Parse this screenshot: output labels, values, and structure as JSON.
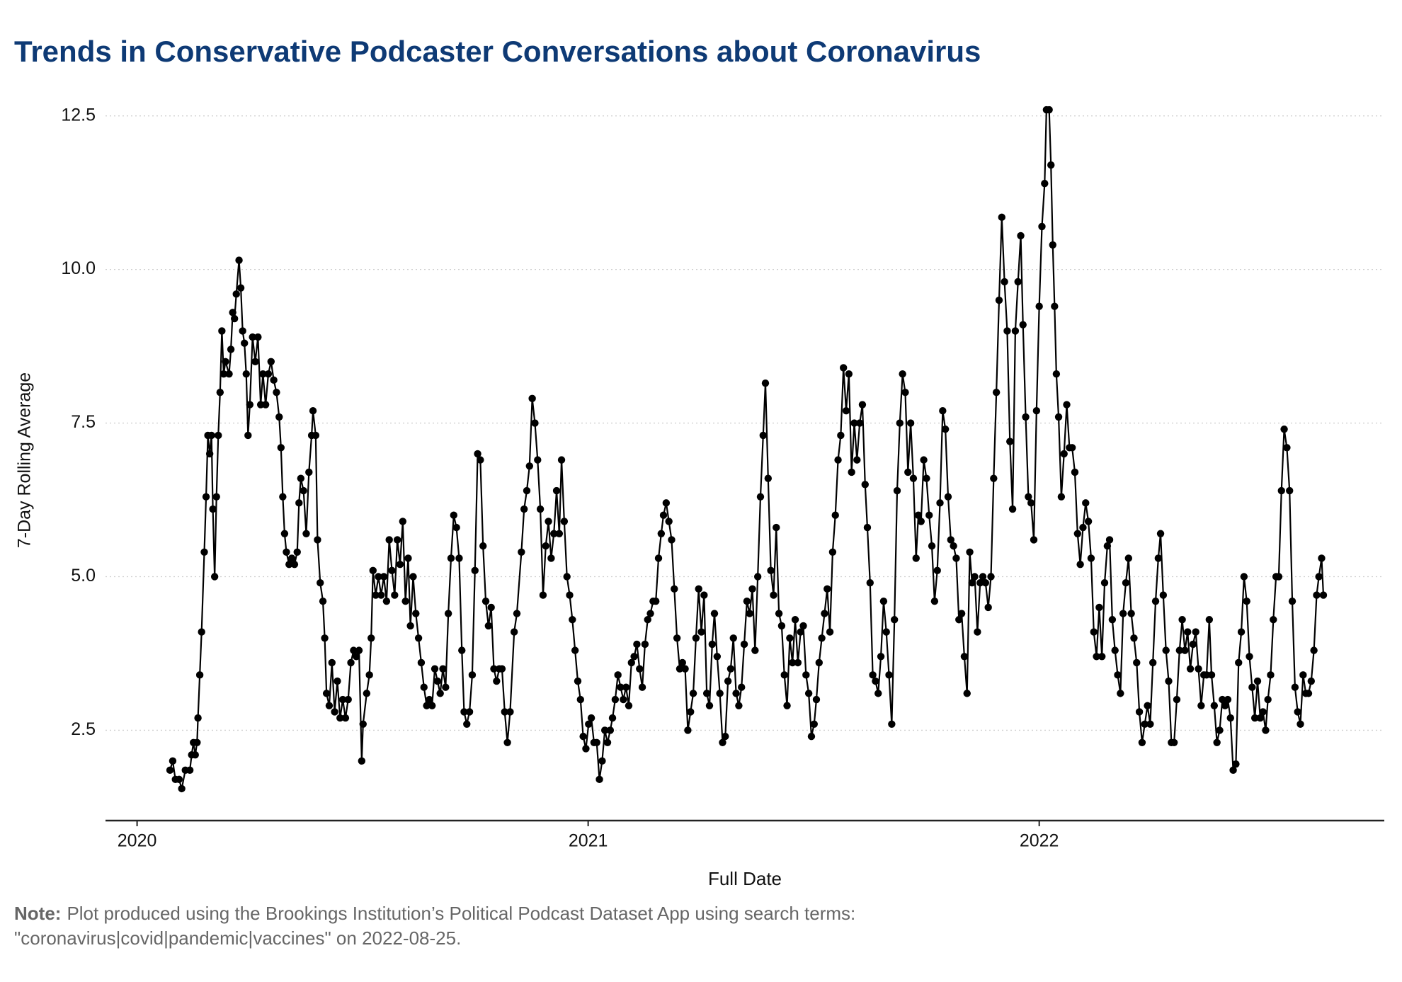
{
  "chart_data": {
    "type": "line",
    "title": "Trends in Conservative Podcaster Conversations about Coronavirus",
    "x_label": "Full Date",
    "y_label": "7-Day Rolling Average",
    "note_label": "Note:",
    "note": [
      "Plot produced using the Brookings Institution’s Political Podcast Dataset App using search terms:",
      "\"coronavirus|covid|pandemic|vaccines\"  on 2022-08-25."
    ],
    "color": "#000000",
    "grid": true,
    "xlim": [
      2019.93,
      2022.765
    ],
    "xticks": [
      2020,
      2021,
      2022
    ],
    "ylim": [
      1.03,
      12.75
    ],
    "yticks": [
      {
        "value": 2.5,
        "label": "2.5"
      },
      {
        "value": 5,
        "label": "5.0"
      },
      {
        "value": 7.5,
        "label": "7.5"
      },
      {
        "value": 10,
        "label": "10.0"
      },
      {
        "value": 12.5,
        "label": "12.5"
      }
    ],
    "x": [
      2020.073,
      2020.079,
      2020.085,
      2020.093,
      2020.099,
      2020.107,
      2020.117,
      2020.121,
      2020.125,
      2020.129,
      2020.133,
      2020.135,
      2020.139,
      2020.143,
      2020.149,
      2020.153,
      2020.157,
      2020.161,
      2020.165,
      2020.168,
      2020.172,
      2020.176,
      2020.18,
      2020.184,
      2020.188,
      2020.192,
      2020.196,
      2020.204,
      2020.208,
      2020.212,
      2020.216,
      2020.22,
      2020.226,
      2020.23,
      2020.234,
      2020.238,
      2020.242,
      2020.246,
      2020.25,
      2020.256,
      2020.262,
      2020.268,
      2020.274,
      2020.279,
      2020.285,
      2020.291,
      2020.297,
      2020.303,
      2020.309,
      2020.315,
      2020.319,
      2020.323,
      2020.327,
      2020.331,
      2020.337,
      2020.343,
      2020.349,
      2020.355,
      2020.359,
      2020.363,
      2020.369,
      2020.375,
      2020.381,
      2020.387,
      2020.39,
      2020.396,
      2020.4,
      2020.406,
      2020.412,
      2020.416,
      2020.42,
      2020.426,
      2020.432,
      2020.438,
      2020.444,
      2020.45,
      2020.456,
      2020.462,
      2020.468,
      2020.474,
      2020.48,
      2020.486,
      2020.492,
      2020.498,
      2020.501,
      2020.509,
      2020.515,
      2020.519,
      2020.523,
      2020.529,
      2020.535,
      2020.541,
      2020.547,
      2020.553,
      2020.559,
      2020.565,
      2020.571,
      2020.577,
      2020.583,
      2020.589,
      2020.595,
      2020.601,
      2020.606,
      2020.612,
      2020.618,
      2020.624,
      2020.63,
      2020.636,
      2020.642,
      2020.648,
      2020.654,
      2020.66,
      2020.666,
      2020.672,
      2020.678,
      2020.684,
      2020.69,
      2020.696,
      2020.702,
      2020.708,
      2020.714,
      2020.72,
      2020.725,
      2020.731,
      2020.737,
      2020.743,
      2020.749,
      2020.755,
      2020.761,
      2020.767,
      2020.773,
      2020.779,
      2020.785,
      2020.791,
      2020.797,
      2020.803,
      2020.809,
      2020.815,
      2020.821,
      2020.827,
      2020.836,
      2020.842,
      2020.852,
      2020.858,
      2020.864,
      2020.87,
      2020.876,
      2020.882,
      2020.888,
      2020.894,
      2020.9,
      2020.906,
      2020.912,
      2020.918,
      2020.924,
      2020.93,
      2020.936,
      2020.941,
      2020.947,
      2020.953,
      2020.959,
      2020.965,
      2020.971,
      2020.977,
      2020.983,
      2020.989,
      2020.995,
      2021.001,
      2021.007,
      2021.013,
      2021.019,
      2021.025,
      2021.031,
      2021.037,
      2021.043,
      2021.049,
      2021.054,
      2021.06,
      2021.066,
      2021.072,
      2021.078,
      2021.084,
      2021.09,
      2021.096,
      2021.102,
      2021.108,
      2021.114,
      2021.12,
      2021.126,
      2021.132,
      2021.138,
      2021.144,
      2021.15,
      2021.156,
      2021.162,
      2021.167,
      2021.173,
      2021.179,
      2021.185,
      2021.191,
      2021.197,
      2021.203,
      2021.209,
      2021.215,
      2021.221,
      2021.227,
      2021.233,
      2021.239,
      2021.245,
      2021.251,
      2021.257,
      2021.263,
      2021.269,
      2021.275,
      2021.28,
      2021.286,
      2021.292,
      2021.298,
      2021.304,
      2021.31,
      2021.316,
      2021.322,
      2021.328,
      2021.334,
      2021.34,
      2021.346,
      2021.352,
      2021.358,
      2021.364,
      2021.37,
      2021.376,
      2021.382,
      2021.388,
      2021.393,
      2021.399,
      2021.405,
      2021.411,
      2021.417,
      2021.423,
      2021.429,
      2021.435,
      2021.441,
      2021.447,
      2021.453,
      2021.459,
      2021.465,
      2021.471,
      2021.477,
      2021.483,
      2021.489,
      2021.495,
      2021.501,
      2021.506,
      2021.512,
      2021.518,
      2021.524,
      2021.53,
      2021.536,
      2021.542,
      2021.548,
      2021.554,
      2021.56,
      2021.566,
      2021.572,
      2021.578,
      2021.584,
      2021.59,
      2021.596,
      2021.602,
      2021.608,
      2021.614,
      2021.619,
      2021.625,
      2021.631,
      2021.637,
      2021.643,
      2021.649,
      2021.655,
      2021.661,
      2021.667,
      2021.673,
      2021.679,
      2021.685,
      2021.691,
      2021.697,
      2021.703,
      2021.709,
      2021.715,
      2021.721,
      2021.727,
      2021.732,
      2021.738,
      2021.744,
      2021.75,
      2021.756,
      2021.762,
      2021.768,
      2021.774,
      2021.78,
      2021.786,
      2021.792,
      2021.798,
      2021.804,
      2021.81,
      2021.816,
      2021.822,
      2021.828,
      2021.834,
      2021.84,
      2021.846,
      2021.851,
      2021.857,
      2021.863,
      2021.869,
      2021.875,
      2021.881,
      2021.887,
      2021.893,
      2021.899,
      2021.905,
      2021.911,
      2021.917,
      2021.923,
      2021.929,
      2021.935,
      2021.941,
      2021.947,
      2021.953,
      2021.959,
      2021.964,
      2021.97,
      2021.976,
      2021.982,
      2021.988,
      2021.994,
      2022.0,
      2022.006,
      2022.012,
      2022.016,
      2022.022,
      2022.026,
      2022.03,
      2022.034,
      2022.038,
      2022.043,
      2022.049,
      2022.055,
      2022.061,
      2022.067,
      2022.073,
      2022.079,
      2022.085,
      2022.091,
      2022.097,
      2022.103,
      2022.109,
      2022.115,
      2022.121,
      2022.127,
      2022.133,
      2022.139,
      2022.145,
      2022.151,
      2022.156,
      2022.162,
      2022.168,
      2022.174,
      2022.18,
      2022.186,
      2022.192,
      2022.198,
      2022.204,
      2022.21,
      2022.216,
      2022.222,
      2022.228,
      2022.234,
      2022.24,
      2022.246,
      2022.252,
      2022.258,
      2022.264,
      2022.269,
      2022.275,
      2022.281,
      2022.287,
      2022.293,
      2022.299,
      2022.305,
      2022.311,
      2022.317,
      2022.323,
      2022.329,
      2022.335,
      2022.341,
      2022.347,
      2022.353,
      2022.359,
      2022.365,
      2022.371,
      2022.377,
      2022.382,
      2022.388,
      2022.394,
      2022.4,
      2022.406,
      2022.412,
      2022.418,
      2022.424,
      2022.43,
      2022.436,
      2022.442,
      2022.448,
      2022.454,
      2022.46,
      2022.466,
      2022.472,
      2022.478,
      2022.484,
      2022.49,
      2022.496,
      2022.502,
      2022.507,
      2022.513,
      2022.519,
      2022.525,
      2022.531,
      2022.537,
      2022.543,
      2022.549,
      2022.555,
      2022.561,
      2022.567,
      2022.573,
      2022.579,
      2022.585,
      2022.591,
      2022.597,
      2022.603,
      2022.609,
      2022.615,
      2022.62,
      2022.626,
      2022.63
    ],
    "values": [
      1.85,
      2.0,
      1.7,
      1.7,
      1.55,
      1.85,
      1.85,
      2.1,
      2.3,
      2.1,
      2.3,
      2.7,
      3.4,
      4.1,
      5.4,
      6.3,
      7.3,
      7.0,
      7.3,
      6.1,
      5.0,
      6.3,
      7.3,
      8.0,
      9.0,
      8.3,
      8.5,
      8.3,
      8.7,
      9.3,
      9.2,
      9.6,
      10.15,
      9.7,
      9.0,
      8.8,
      8.3,
      7.3,
      7.8,
      8.9,
      8.5,
      8.9,
      7.8,
      8.3,
      7.8,
      8.3,
      8.5,
      8.2,
      8.0,
      7.6,
      7.1,
      6.3,
      5.7,
      5.4,
      5.2,
      5.3,
      5.2,
      5.4,
      6.2,
      6.6,
      6.4,
      5.7,
      6.7,
      7.3,
      7.7,
      7.3,
      5.6,
      4.9,
      4.6,
      4.0,
      3.1,
      2.9,
      3.6,
      2.8,
      3.3,
      2.7,
      3.0,
      2.7,
      3.0,
      3.6,
      3.8,
      3.7,
      3.8,
      2.0,
      2.6,
      3.1,
      3.4,
      4.0,
      5.1,
      4.7,
      5.0,
      4.7,
      5.0,
      4.6,
      5.6,
      5.1,
      4.7,
      5.6,
      5.2,
      5.9,
      4.6,
      5.3,
      4.2,
      5.0,
      4.4,
      4.0,
      3.6,
      3.2,
      2.9,
      3.0,
      2.9,
      3.5,
      3.3,
      3.1,
      3.5,
      3.2,
      4.4,
      5.3,
      6.0,
      5.8,
      5.3,
      3.8,
      2.8,
      2.6,
      2.8,
      3.4,
      5.1,
      7.0,
      6.9,
      5.5,
      4.6,
      4.2,
      4.5,
      3.5,
      3.3,
      3.5,
      3.5,
      2.8,
      2.3,
      2.8,
      4.1,
      4.4,
      5.4,
      6.1,
      6.4,
      6.8,
      7.9,
      7.5,
      6.9,
      6.1,
      4.7,
      5.5,
      5.9,
      5.3,
      5.7,
      6.4,
      5.7,
      6.9,
      5.9,
      5.0,
      4.7,
      4.3,
      3.8,
      3.3,
      3.0,
      2.4,
      2.2,
      2.6,
      2.7,
      2.3,
      2.3,
      1.7,
      2.0,
      2.5,
      2.3,
      2.5,
      2.7,
      3.0,
      3.4,
      3.2,
      3.0,
      3.2,
      2.9,
      3.6,
      3.7,
      3.9,
      3.5,
      3.2,
      3.9,
      4.3,
      4.4,
      4.6,
      4.6,
      5.3,
      5.7,
      6.0,
      6.2,
      5.9,
      5.6,
      4.8,
      4.0,
      3.5,
      3.6,
      3.5,
      2.5,
      2.8,
      3.1,
      4.0,
      4.8,
      4.1,
      4.7,
      3.1,
      2.9,
      3.9,
      4.4,
      3.7,
      3.1,
      2.3,
      2.4,
      3.3,
      3.5,
      4.0,
      3.1,
      2.9,
      3.2,
      3.9,
      4.6,
      4.4,
      4.8,
      3.8,
      5.0,
      6.3,
      7.3,
      8.15,
      6.6,
      5.1,
      4.7,
      5.8,
      4.4,
      4.2,
      3.4,
      2.9,
      4.0,
      3.6,
      4.3,
      3.6,
      4.1,
      4.2,
      3.4,
      3.1,
      2.4,
      2.6,
      3.0,
      3.6,
      4.0,
      4.4,
      4.8,
      4.1,
      5.4,
      6.0,
      6.9,
      7.3,
      8.4,
      7.7,
      8.3,
      6.7,
      7.5,
      6.9,
      7.5,
      7.8,
      6.5,
      5.8,
      4.9,
      3.4,
      3.3,
      3.1,
      3.7,
      4.6,
      4.1,
      3.4,
      2.6,
      4.3,
      6.4,
      7.5,
      8.3,
      8.0,
      6.7,
      7.5,
      6.6,
      5.3,
      6.0,
      5.9,
      6.9,
      6.6,
      6.0,
      5.5,
      4.6,
      5.1,
      6.2,
      7.7,
      7.4,
      6.3,
      5.6,
      5.5,
      5.3,
      4.3,
      4.4,
      3.7,
      3.1,
      5.4,
      4.9,
      5.0,
      4.1,
      4.9,
      5.0,
      4.9,
      4.5,
      5.0,
      6.6,
      8.0,
      9.5,
      10.85,
      9.8,
      9.0,
      7.2,
      6.1,
      9.0,
      9.8,
      10.55,
      9.1,
      7.6,
      6.3,
      6.2,
      5.6,
      7.7,
      9.4,
      10.7,
      11.4,
      12.6,
      12.6,
      11.7,
      10.4,
      9.4,
      8.3,
      7.6,
      6.3,
      7.0,
      7.8,
      7.1,
      7.1,
      6.7,
      5.7,
      5.2,
      5.8,
      6.2,
      5.9,
      5.3,
      4.1,
      3.7,
      4.5,
      3.7,
      4.9,
      5.5,
      5.6,
      4.3,
      3.8,
      3.4,
      3.1,
      4.4,
      4.9,
      5.3,
      4.4,
      4.0,
      3.6,
      2.8,
      2.3,
      2.6,
      2.9,
      2.6,
      3.6,
      4.6,
      5.3,
      5.7,
      4.7,
      3.8,
      3.3,
      2.3,
      2.3,
      3.0,
      3.8,
      4.3,
      3.8,
      4.1,
      3.5,
      3.9,
      4.1,
      3.5,
      2.9,
      3.4,
      3.4,
      4.3,
      3.4,
      2.9,
      2.3,
      2.5,
      3.0,
      2.9,
      3.0,
      2.7,
      1.85,
      1.95,
      3.6,
      4.1,
      5.0,
      4.6,
      3.7,
      3.2,
      2.7,
      3.3,
      2.7,
      2.8,
      2.5,
      3.0,
      3.4,
      4.3,
      5.0,
      5.0,
      6.4,
      7.4,
      7.1,
      6.4,
      4.6,
      3.2,
      2.8,
      2.6,
      3.4,
      3.1,
      3.1,
      3.3,
      3.8,
      4.7,
      5.0,
      5.3,
      4.7
    ]
  }
}
